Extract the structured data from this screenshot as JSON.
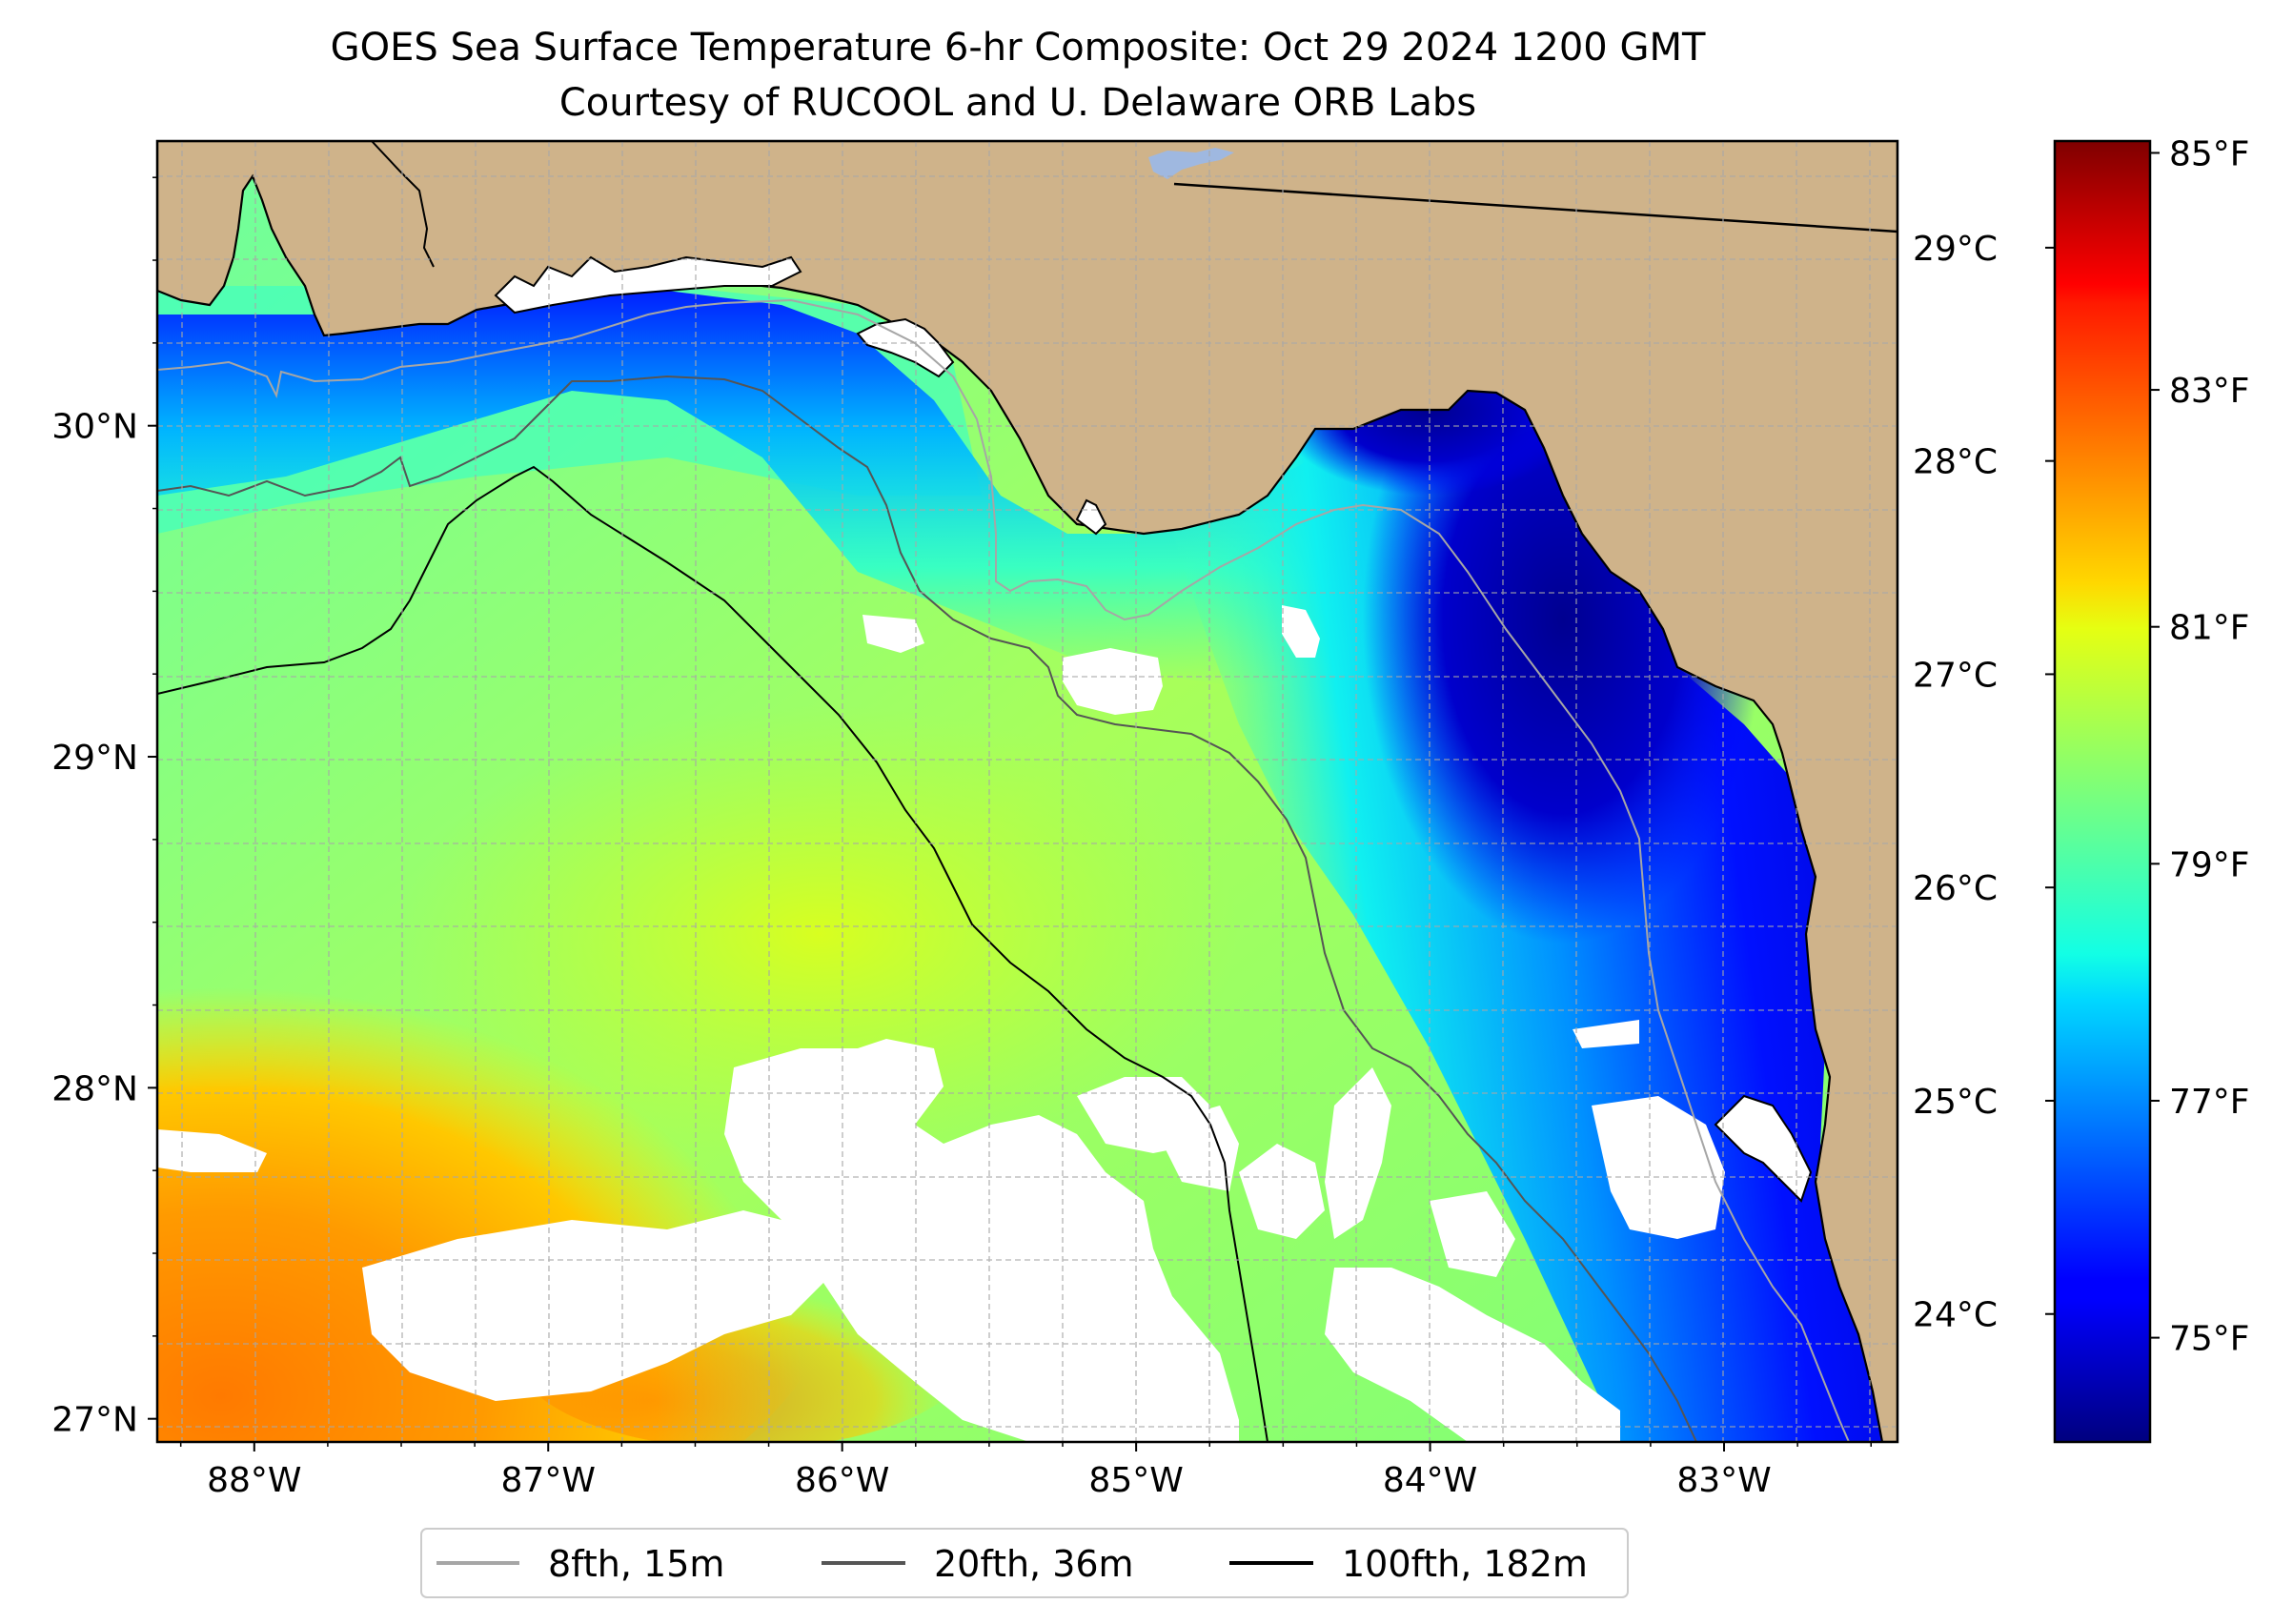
{
  "title": {
    "line1": "GOES Sea Surface Temperature 6-hr Composite: Oct 29 2024 1200 GMT",
    "line2": "Courtesy of RUCOOL and U. Delaware ORB Labs"
  },
  "map": {
    "lon_range": [
      -88.33,
      -82.41
    ],
    "lat_range": [
      26.93,
      30.86
    ],
    "x_ticks": [
      {
        "lon": -88,
        "label": "88°W"
      },
      {
        "lon": -87,
        "label": "87°W"
      },
      {
        "lon": -86,
        "label": "86°W"
      },
      {
        "lon": -85,
        "label": "85°W"
      },
      {
        "lon": -84,
        "label": "84°W"
      },
      {
        "lon": -83,
        "label": "83°W"
      }
    ],
    "y_ticks": [
      {
        "lat": 30,
        "label": "30°N"
      },
      {
        "lat": 29,
        "label": "29°N"
      },
      {
        "lat": 28,
        "label": "28°N"
      },
      {
        "lat": 27,
        "label": "27°N"
      }
    ],
    "gridline_spacing_deg": 0.25,
    "gridlines": true,
    "colors": {
      "land": "#cfb38a",
      "cloud_mask": "#ffffff",
      "grid": "#a8a8a8",
      "coast": "#000000"
    }
  },
  "colorbar": {
    "colormap": "jet",
    "range_c": [
      23.4,
      29.5
    ],
    "celsius_ticks": [
      {
        "value": 24,
        "label": "24°C"
      },
      {
        "value": 25,
        "label": "25°C"
      },
      {
        "value": 26,
        "label": "26°C"
      },
      {
        "value": 27,
        "label": "27°C"
      },
      {
        "value": 28,
        "label": "28°C"
      },
      {
        "value": 29,
        "label": "29°C"
      }
    ],
    "fahrenheit_ticks": [
      {
        "value": 75,
        "label": "75°F"
      },
      {
        "value": 77,
        "label": "77°F"
      },
      {
        "value": 79,
        "label": "79°F"
      },
      {
        "value": 81,
        "label": "81°F"
      },
      {
        "value": 83,
        "label": "83°F"
      },
      {
        "value": 85,
        "label": "85°F"
      }
    ]
  },
  "legend": {
    "placement": "bottom-center",
    "items": [
      {
        "label": "8fth, 15m",
        "color": "#a6a6a6"
      },
      {
        "label": "20fth, 36m",
        "color": "#555555"
      },
      {
        "label": "100fth, 182m",
        "color": "#000000"
      }
    ]
  }
}
